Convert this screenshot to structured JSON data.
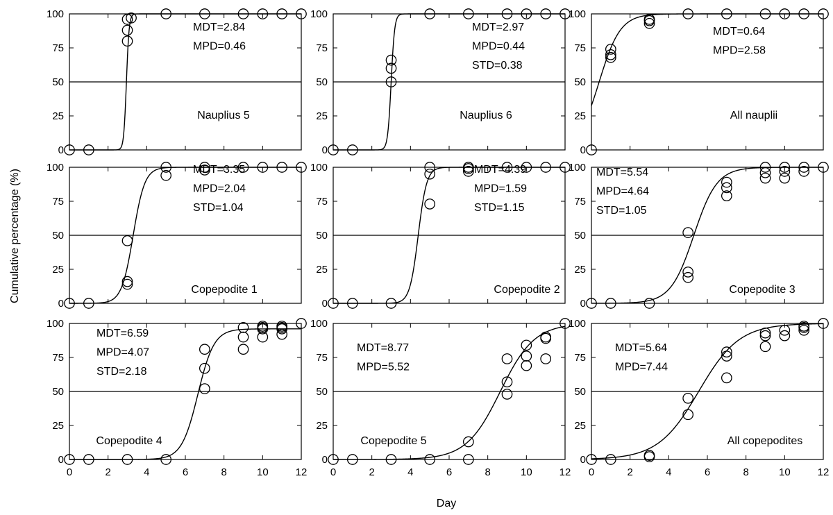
{
  "figure": {
    "ylabel": "Cumulative percentage (%)",
    "xlabel": "Day"
  },
  "chart_data": [
    {
      "type": "scatter",
      "label": "Nauplius 5",
      "stats": [
        "MDT=2.84",
        "MPD=0.46"
      ],
      "xlim": [
        0,
        12
      ],
      "ylim": [
        0,
        100
      ],
      "xticks": [
        0,
        2,
        4,
        6,
        8,
        10,
        12
      ],
      "yticks": [
        0,
        25,
        50,
        75,
        100
      ],
      "reference_y": 50,
      "curve": {
        "mu": 2.95,
        "s": 0.07
      },
      "points": [
        [
          0,
          0
        ],
        [
          1,
          0
        ],
        [
          3,
          80
        ],
        [
          3,
          88
        ],
        [
          3,
          96
        ],
        [
          3.2,
          97
        ],
        [
          5,
          100
        ],
        [
          7,
          100
        ],
        [
          9,
          100
        ],
        [
          10,
          100
        ],
        [
          11,
          100
        ],
        [
          12,
          100
        ]
      ]
    },
    {
      "type": "scatter",
      "label": "Nauplius 6",
      "stats": [
        "MDT=2.97",
        "MPD=0.44",
        "STD=0.38"
      ],
      "xlim": [
        0,
        12
      ],
      "ylim": [
        0,
        100
      ],
      "xticks": [
        0,
        2,
        4,
        6,
        8,
        10,
        12
      ],
      "yticks": [
        0,
        25,
        50,
        75,
        100
      ],
      "reference_y": 50,
      "curve": {
        "mu": 3.0,
        "s": 0.09
      },
      "points": [
        [
          0,
          0
        ],
        [
          1,
          0
        ],
        [
          3,
          50
        ],
        [
          3,
          60
        ],
        [
          3,
          66
        ],
        [
          5,
          100
        ],
        [
          7,
          100
        ],
        [
          9,
          100
        ],
        [
          10,
          100
        ],
        [
          11,
          100
        ],
        [
          12,
          100
        ]
      ]
    },
    {
      "type": "scatter",
      "label": "All nauplii",
      "stats": [
        "MDT=0.64",
        "MPD=2.58"
      ],
      "xlim": [
        0,
        12
      ],
      "ylim": [
        0,
        100
      ],
      "xticks": [
        0,
        2,
        4,
        6,
        8,
        10,
        12
      ],
      "yticks": [
        0,
        25,
        50,
        75,
        100
      ],
      "reference_y": 50,
      "curve": {
        "mu": 0.4,
        "s": 0.55
      },
      "points": [
        [
          0,
          0
        ],
        [
          1,
          68
        ],
        [
          1,
          70
        ],
        [
          1,
          74
        ],
        [
          3,
          93
        ],
        [
          3,
          95
        ],
        [
          3,
          96
        ],
        [
          5,
          100
        ],
        [
          7,
          100
        ],
        [
          9,
          100
        ],
        [
          10,
          100
        ],
        [
          11,
          100
        ],
        [
          12,
          100
        ]
      ]
    },
    {
      "type": "scatter",
      "label": "Copepodite 1",
      "stats": [
        "MDT=3.35",
        "MPD=2.04",
        "STD=1.04"
      ],
      "xlim": [
        0,
        12
      ],
      "ylim": [
        0,
        100
      ],
      "xticks": [
        0,
        2,
        4,
        6,
        8,
        10,
        12
      ],
      "yticks": [
        0,
        25,
        50,
        75,
        100
      ],
      "reference_y": 50,
      "curve": {
        "mu": 3.3,
        "s": 0.3
      },
      "points": [
        [
          0,
          0
        ],
        [
          1,
          0
        ],
        [
          3,
          14
        ],
        [
          3,
          16
        ],
        [
          3,
          46
        ],
        [
          5,
          94
        ],
        [
          5,
          100
        ],
        [
          7,
          98
        ],
        [
          7,
          100
        ],
        [
          9,
          100
        ],
        [
          10,
          100
        ],
        [
          11,
          100
        ],
        [
          12,
          100
        ]
      ]
    },
    {
      "type": "scatter",
      "label": "Copepodite 2",
      "stats": [
        "MDT=4.39",
        "MPD=1.59",
        "STD=1.15"
      ],
      "xlim": [
        0,
        12
      ],
      "ylim": [
        0,
        100
      ],
      "xticks": [
        0,
        2,
        4,
        6,
        8,
        10,
        12
      ],
      "yticks": [
        0,
        25,
        50,
        75,
        100
      ],
      "reference_y": 50,
      "curve": {
        "mu": 4.4,
        "s": 0.22
      },
      "points": [
        [
          0,
          0
        ],
        [
          1,
          0
        ],
        [
          3,
          0
        ],
        [
          5,
          73
        ],
        [
          5,
          95
        ],
        [
          5,
          100
        ],
        [
          7,
          97
        ],
        [
          7,
          99
        ],
        [
          7,
          100
        ],
        [
          9,
          100
        ],
        [
          10,
          100
        ],
        [
          11,
          100
        ],
        [
          12,
          100
        ]
      ]
    },
    {
      "type": "scatter",
      "label": "Copepodite 3",
      "stats": [
        "MDT=5.54",
        "MPD=4.64",
        "STD=1.05"
      ],
      "xlim": [
        0,
        12
      ],
      "ylim": [
        0,
        100
      ],
      "xticks": [
        0,
        2,
        4,
        6,
        8,
        10,
        12
      ],
      "yticks": [
        0,
        25,
        50,
        75,
        100
      ],
      "reference_y": 50,
      "curve": {
        "mu": 5.3,
        "s": 0.6
      },
      "points": [
        [
          0,
          0
        ],
        [
          1,
          0
        ],
        [
          3,
          0
        ],
        [
          5,
          19
        ],
        [
          5,
          23
        ],
        [
          5,
          52
        ],
        [
          7,
          79
        ],
        [
          7,
          85
        ],
        [
          7,
          89
        ],
        [
          9,
          92
        ],
        [
          9,
          96
        ],
        [
          9,
          100
        ],
        [
          10,
          92
        ],
        [
          10,
          97
        ],
        [
          10,
          100
        ],
        [
          11,
          97
        ],
        [
          11,
          100
        ],
        [
          12,
          100
        ]
      ]
    },
    {
      "type": "scatter",
      "label": "Copepodite 4",
      "stats": [
        "MDT=6.59",
        "MPD=4.07",
        "STD=2.18"
      ],
      "xlim": [
        0,
        12
      ],
      "ylim": [
        0,
        100
      ],
      "xticks": [
        0,
        2,
        4,
        6,
        8,
        10,
        12
      ],
      "yticks": [
        0,
        25,
        50,
        75,
        100
      ],
      "reference_y": 50,
      "curve": {
        "mu": 6.65,
        "s": 0.42,
        "max": 96
      },
      "points": [
        [
          0,
          0
        ],
        [
          1,
          0
        ],
        [
          3,
          0
        ],
        [
          5,
          0
        ],
        [
          7,
          52
        ],
        [
          7,
          67
        ],
        [
          7,
          81
        ],
        [
          9,
          81
        ],
        [
          9,
          90
        ],
        [
          9,
          97
        ],
        [
          10,
          90
        ],
        [
          10,
          96
        ],
        [
          10,
          97
        ],
        [
          10,
          98
        ],
        [
          11,
          92
        ],
        [
          11,
          96
        ],
        [
          11,
          97
        ],
        [
          11,
          98
        ],
        [
          12,
          100
        ]
      ]
    },
    {
      "type": "scatter",
      "label": "Copepodite 5",
      "stats": [
        "MDT=8.77",
        "MPD=5.52"
      ],
      "xlim": [
        0,
        12
      ],
      "ylim": [
        0,
        100
      ],
      "xticks": [
        0,
        2,
        4,
        6,
        8,
        10,
        12
      ],
      "yticks": [
        0,
        25,
        50,
        75,
        100
      ],
      "reference_y": 50,
      "curve": {
        "mu": 8.65,
        "s": 0.88
      },
      "points": [
        [
          0,
          0
        ],
        [
          1,
          0
        ],
        [
          3,
          0
        ],
        [
          5,
          0
        ],
        [
          7,
          0
        ],
        [
          7,
          13
        ],
        [
          9,
          48
        ],
        [
          9,
          57
        ],
        [
          9,
          74
        ],
        [
          10,
          69
        ],
        [
          10,
          76
        ],
        [
          10,
          84
        ],
        [
          11,
          74
        ],
        [
          11,
          89
        ],
        [
          11,
          90
        ],
        [
          12,
          100
        ]
      ]
    },
    {
      "type": "scatter",
      "label": "All copepodites",
      "stats": [
        "MDT=5.64",
        "MPD=7.44"
      ],
      "xlim": [
        0,
        12
      ],
      "ylim": [
        0,
        100
      ],
      "xticks": [
        0,
        2,
        4,
        6,
        8,
        10,
        12
      ],
      "yticks": [
        0,
        25,
        50,
        75,
        100
      ],
      "reference_y": 50,
      "curve": {
        "mu": 5.55,
        "s": 1.05
      },
      "points": [
        [
          0,
          0
        ],
        [
          1,
          0
        ],
        [
          3,
          2
        ],
        [
          3,
          3
        ],
        [
          5,
          33
        ],
        [
          5,
          45
        ],
        [
          7,
          60
        ],
        [
          7,
          76
        ],
        [
          7,
          79
        ],
        [
          9,
          83
        ],
        [
          9,
          91
        ],
        [
          9,
          93
        ],
        [
          10,
          91
        ],
        [
          10,
          95
        ],
        [
          11,
          95
        ],
        [
          11,
          97
        ],
        [
          11,
          98
        ],
        [
          12,
          100
        ]
      ]
    }
  ]
}
